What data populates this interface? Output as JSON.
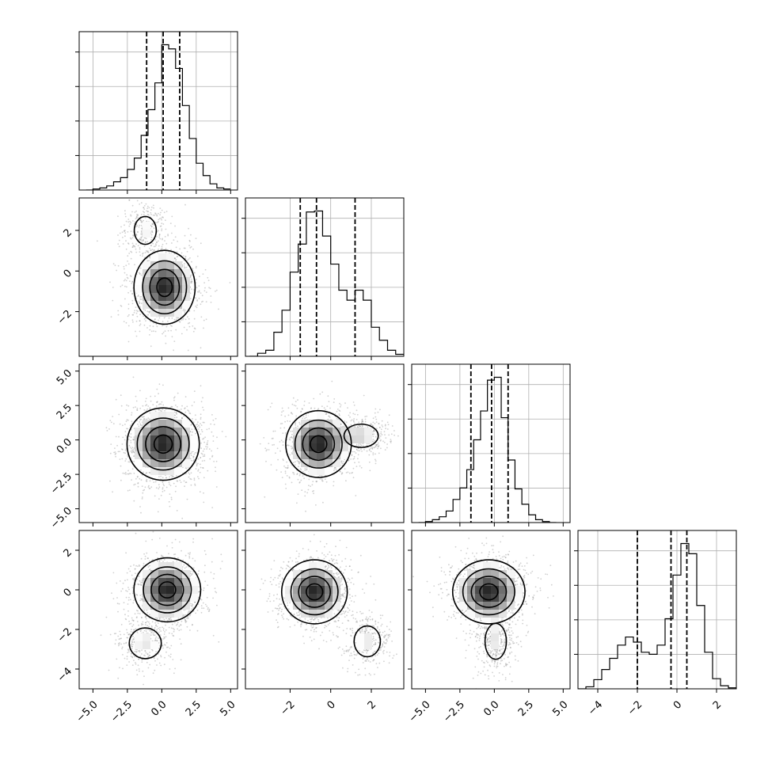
{
  "chart_data": {
    "type": "corner",
    "parameters": 4,
    "grid": true,
    "color": "#000000",
    "quantiles": [
      0.16,
      0.5,
      0.84
    ],
    "axis_ranges": [
      [
        -6.0,
        5.5
      ],
      [
        -4.2,
        3.6
      ],
      [
        -6.0,
        5.5
      ],
      [
        -5.0,
        3.0
      ]
    ],
    "tick_labels": [
      [
        "-5.0",
        "-2.5",
        "0.0",
        "2.5",
        "5.0"
      ],
      [
        "-2",
        "0",
        "2"
      ],
      [
        "-5.0",
        "-2.5",
        "0.0",
        "2.5",
        "5.0"
      ],
      [
        "-4",
        "-2",
        "0",
        "2"
      ]
    ],
    "tick_values": [
      [
        -5.0,
        -2.5,
        0.0,
        2.5,
        5.0
      ],
      [
        -2,
        0,
        2
      ],
      [
        -5.0,
        -2.5,
        0.0,
        2.5,
        5.0
      ],
      [
        -4,
        -2,
        0,
        2
      ]
    ],
    "marginals": [
      {
        "param": 1,
        "bin_edges": [
          -5.5,
          -5.0,
          -4.5,
          -4.0,
          -3.5,
          -3.0,
          -2.5,
          -2.0,
          -1.5,
          -1.0,
          -0.5,
          0.0,
          0.5,
          1.0,
          1.5,
          2.0,
          2.5,
          3.0,
          3.5,
          4.0,
          4.5,
          5.0
        ],
        "counts": [
          0,
          5,
          10,
          20,
          40,
          60,
          100,
          155,
          265,
          390,
          520,
          705,
          685,
          590,
          410,
          250,
          130,
          70,
          30,
          10,
          5
        ],
        "quantile_values": [
          -1.1,
          0.1,
          1.3
        ]
      },
      {
        "param": 2,
        "bin_edges": [
          -4.0,
          -3.6,
          -3.2,
          -2.8,
          -2.4,
          -2.0,
          -1.6,
          -1.2,
          -0.8,
          -0.4,
          0.0,
          0.4,
          0.8,
          1.2,
          1.6,
          2.0,
          2.4,
          2.8,
          3.2,
          3.6
        ],
        "counts": [
          0,
          15,
          30,
          120,
          230,
          420,
          560,
          720,
          725,
          600,
          460,
          330,
          280,
          330,
          280,
          145,
          80,
          30,
          10
        ],
        "quantile_values": [
          -1.5,
          -0.7,
          1.2
        ]
      },
      {
        "param": 3,
        "bin_edges": [
          -5.5,
          -5.0,
          -4.5,
          -4.0,
          -3.5,
          -3.0,
          -2.5,
          -2.0,
          -1.5,
          -1.0,
          -0.5,
          0.0,
          0.5,
          1.0,
          1.5,
          2.0,
          2.5,
          3.0,
          3.5,
          4.0,
          4.5
        ],
        "counts": [
          0,
          5,
          15,
          30,
          60,
          120,
          180,
          275,
          430,
          580,
          740,
          755,
          545,
          325,
          175,
          95,
          40,
          15,
          5,
          0
        ],
        "quantile_values": [
          -1.7,
          -0.2,
          1.0
        ]
      },
      {
        "param": 4,
        "bin_edges": [
          -5.0,
          -4.6,
          -4.2,
          -3.8,
          -3.4,
          -3.0,
          -2.6,
          -2.2,
          -1.8,
          -1.4,
          -1.0,
          -0.6,
          -0.2,
          0.2,
          0.6,
          1.0,
          1.4,
          1.8,
          2.2,
          2.6,
          3.0
        ],
        "counts": [
          0,
          10,
          45,
          95,
          150,
          215,
          255,
          230,
          180,
          170,
          215,
          345,
          560,
          715,
          665,
          410,
          180,
          50,
          15,
          5
        ],
        "quantile_values": [
          -2.0,
          -0.3,
          0.5
        ]
      }
    ],
    "density_2d": [
      {
        "x_param": 1,
        "y_param": 2,
        "modes": [
          {
            "x": 0.2,
            "y": -0.8,
            "weight": 1.0,
            "sx": 1.1,
            "sy": 0.9
          },
          {
            "x": -1.2,
            "y": 2.0,
            "weight": 0.25,
            "sx": 0.7,
            "sy": 0.6
          }
        ]
      },
      {
        "x_param": 1,
        "y_param": 3,
        "modes": [
          {
            "x": 0.1,
            "y": -0.3,
            "weight": 1.0,
            "sx": 1.3,
            "sy": 1.3
          }
        ]
      },
      {
        "x_param": 2,
        "y_param": 3,
        "modes": [
          {
            "x": -0.6,
            "y": -0.3,
            "weight": 1.0,
            "sx": 0.8,
            "sy": 1.2
          },
          {
            "x": 1.5,
            "y": 0.3,
            "weight": 0.35,
            "sx": 0.6,
            "sy": 0.6
          }
        ]
      },
      {
        "x_param": 1,
        "y_param": 4,
        "modes": [
          {
            "x": 0.4,
            "y": 0.0,
            "weight": 1.0,
            "sx": 1.2,
            "sy": 0.8
          },
          {
            "x": -1.2,
            "y": -2.7,
            "weight": 0.3,
            "sx": 0.9,
            "sy": 0.6
          }
        ]
      },
      {
        "x_param": 2,
        "y_param": 4,
        "modes": [
          {
            "x": -0.8,
            "y": -0.1,
            "weight": 1.0,
            "sx": 0.8,
            "sy": 0.8
          },
          {
            "x": 1.8,
            "y": -2.6,
            "weight": 0.3,
            "sx": 0.5,
            "sy": 0.6
          }
        ]
      },
      {
        "x_param": 3,
        "y_param": 4,
        "modes": [
          {
            "x": -0.4,
            "y": -0.1,
            "weight": 1.0,
            "sx": 1.3,
            "sy": 0.8
          },
          {
            "x": 0.1,
            "y": -2.6,
            "weight": 0.3,
            "sx": 0.6,
            "sy": 0.7
          }
        ]
      }
    ]
  }
}
